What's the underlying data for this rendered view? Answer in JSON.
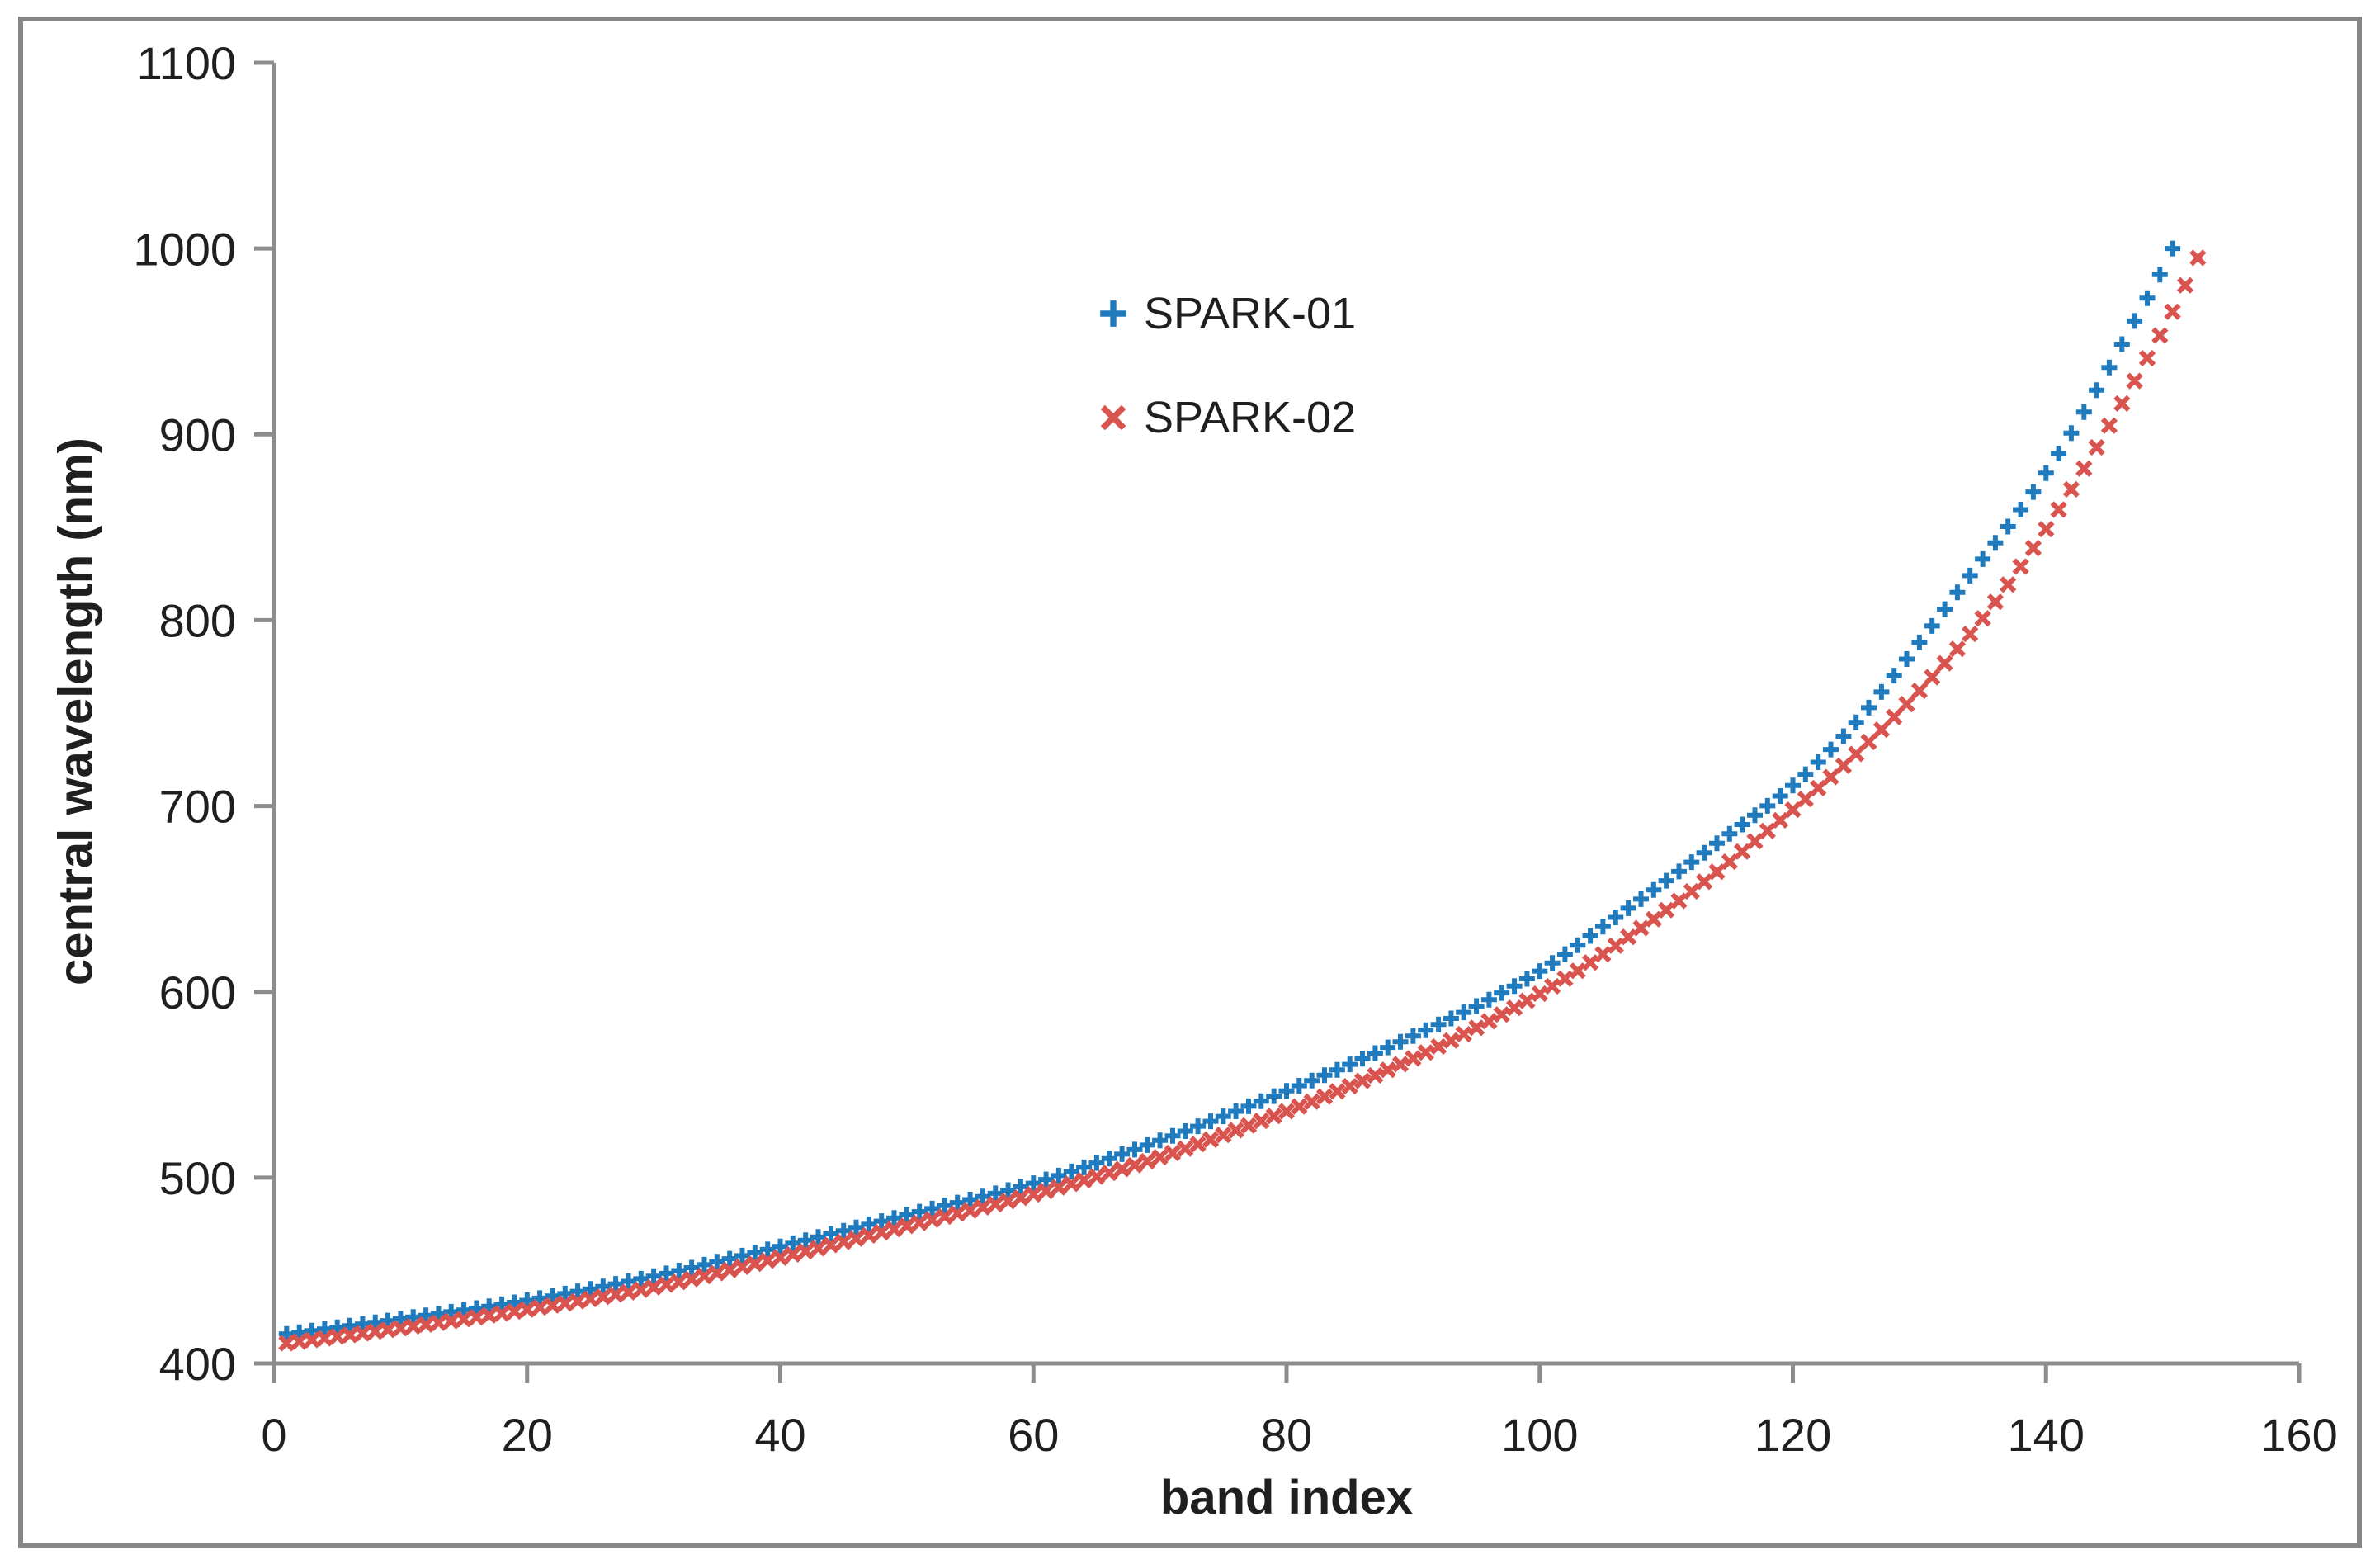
{
  "figure": {
    "background": "#FFFFFF",
    "border_color": "#878787",
    "axis_color": "#8C8C8C",
    "tick_text_color": "#1F1F1F",
    "title_text_color": "#1F1F1F"
  },
  "legend": {
    "position": "inside upper-center-left",
    "items": [
      {
        "label": "SPARK-01",
        "marker": "plus",
        "color": "#1F7BBE"
      },
      {
        "label": "SPARK-02",
        "marker": "x",
        "color": "#D9534F"
      }
    ]
  },
  "chart_data": {
    "type": "scatter",
    "title": "",
    "xlabel": "band index",
    "ylabel": "central wavelength (nm)",
    "xlim": [
      0,
      160
    ],
    "ylim": [
      400,
      1100
    ],
    "xticks": [
      0,
      20,
      40,
      60,
      80,
      100,
      120,
      140,
      160
    ],
    "yticks": [
      400,
      500,
      600,
      700,
      800,
      900,
      1000,
      1100
    ],
    "grid": false,
    "marker_stroke_px": 6,
    "series": [
      {
        "name": "SPARK-01",
        "marker": "plus",
        "color": "#1F7BBE",
        "band_start": 1,
        "band_end": 150,
        "first_wavelength_nm": 415,
        "last_wavelength_nm": 1000,
        "anchor_points": [
          [
            0,
            415
          ],
          [
            10,
            424
          ],
          [
            20,
            434
          ],
          [
            30,
            447
          ],
          [
            40,
            463
          ],
          [
            50,
            480
          ],
          [
            60,
            497
          ],
          [
            70,
            520
          ],
          [
            75,
            533
          ],
          [
            87,
            567
          ],
          [
            99,
            607
          ],
          [
            107,
            645
          ],
          [
            115,
            685
          ],
          [
            120,
            711
          ],
          [
            125,
            745
          ],
          [
            130,
            788
          ],
          [
            134,
            824
          ],
          [
            139,
            869
          ],
          [
            143,
            912
          ],
          [
            147,
            961
          ],
          [
            149,
            986
          ],
          [
            150,
            1000
          ]
        ]
      },
      {
        "name": "SPARK-02",
        "marker": "x",
        "color": "#D9534F",
        "band_start": 1,
        "band_end": 152,
        "first_wavelength_nm": 410,
        "last_wavelength_nm": 995,
        "anchor_points": [
          [
            0,
            410
          ],
          [
            10,
            419
          ],
          [
            20,
            429
          ],
          [
            30,
            441
          ],
          [
            40,
            457
          ],
          [
            50,
            474
          ],
          [
            60,
            491
          ],
          [
            70,
            511
          ],
          [
            75,
            523
          ],
          [
            87,
            555
          ],
          [
            100,
            599
          ],
          [
            110,
            644
          ],
          [
            120,
            698
          ],
          [
            125,
            728
          ],
          [
            130,
            762
          ],
          [
            135,
            801
          ],
          [
            140,
            849
          ],
          [
            144,
            893
          ],
          [
            148,
            941
          ],
          [
            150,
            966
          ],
          [
            152,
            995
          ]
        ]
      }
    ]
  }
}
